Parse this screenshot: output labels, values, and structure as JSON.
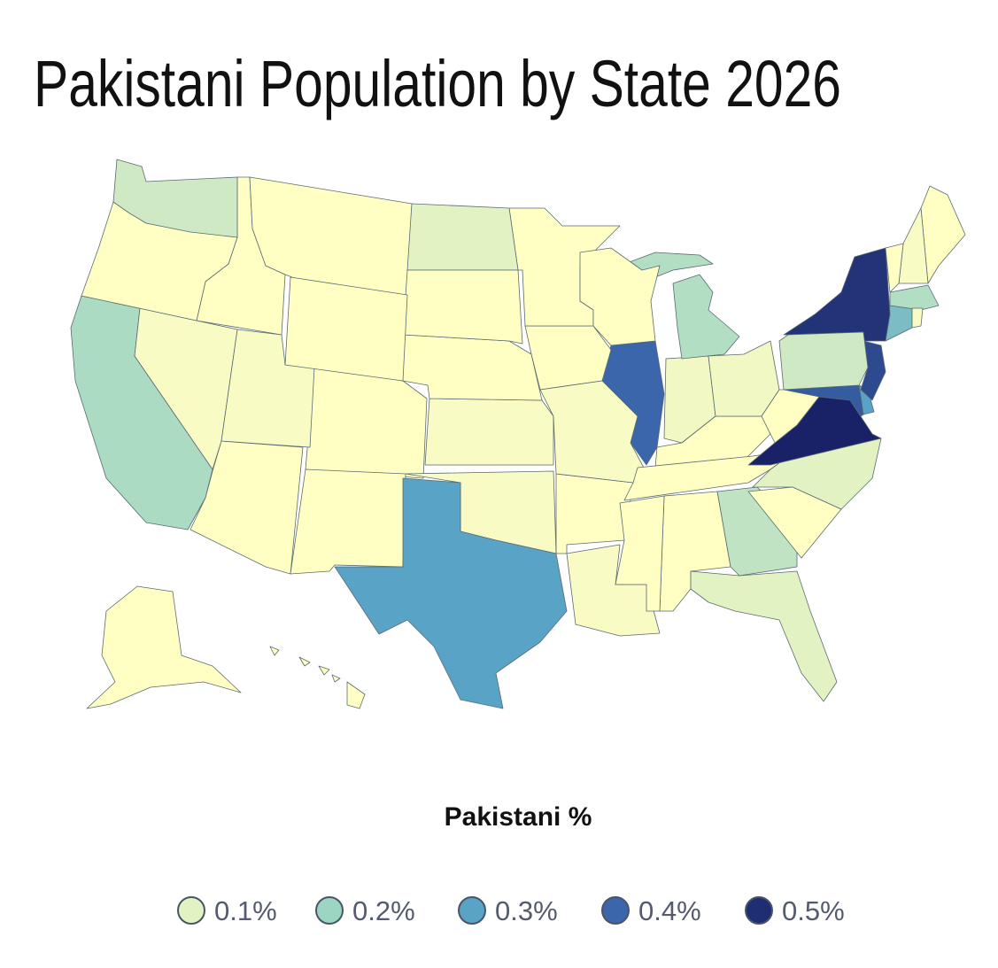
{
  "chart_data": {
    "type": "choropleth",
    "title": "Pakistani Population by State 2026",
    "legend_title": "Pakistani %",
    "legend": [
      {
        "value": 0.1,
        "label": "0.1%"
      },
      {
        "value": 0.2,
        "label": "0.2%"
      },
      {
        "value": 0.3,
        "label": "0.3%"
      },
      {
        "value": 0.4,
        "label": "0.4%"
      },
      {
        "value": 0.5,
        "label": "0.5%"
      }
    ],
    "colors": [
      "#e3f2c3",
      "#9dd5c3",
      "#58a3c6",
      "#3b66ab",
      "#1f2d72"
    ],
    "values": [
      0.06,
      0.06,
      0.06,
      0.05,
      0.18,
      0.06,
      0.25,
      0.3,
      0.1,
      0.15,
      0.06,
      0.03,
      0.4,
      0.08,
      0.04,
      0.07,
      0.05,
      0.07,
      0.02,
      0.42,
      0.17,
      0.17,
      0.06,
      0.05,
      0.07,
      0.01,
      0.03,
      0.07,
      0.07,
      0.45,
      0.05,
      0.49,
      0.1,
      0.1,
      0.08,
      0.07,
      0.05,
      0.13,
      0.07,
      0.04,
      0.03,
      0.06,
      0.3,
      0.07,
      0.03,
      0.52,
      0.13,
      0.03,
      0.05,
      0.02
    ]
  }
}
